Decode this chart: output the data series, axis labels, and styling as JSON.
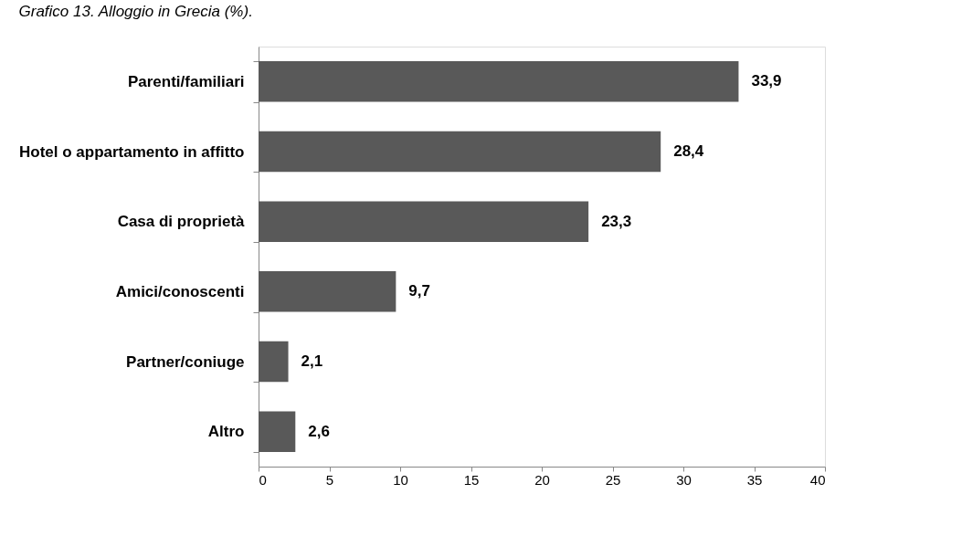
{
  "chart_data": {
    "type": "bar",
    "orientation": "horizontal",
    "title": "Grafico 13. Alloggio in Grecia (%).",
    "categories": [
      "Parenti/familiari",
      "Hotel o appartamento in affitto",
      "Casa di proprietà",
      "Amici/conoscenti",
      "Partner/coniuge",
      "Altro"
    ],
    "values": [
      33.9,
      28.4,
      23.3,
      9.7,
      2.1,
      2.6
    ],
    "value_labels": [
      "33,9",
      "28,4",
      "23,3",
      "9,7",
      "2,1",
      "2,6"
    ],
    "color": "#595959",
    "xlim": [
      0,
      40
    ],
    "xticks": [
      0,
      5,
      10,
      15,
      20,
      25,
      30,
      35,
      40
    ],
    "grid": false
  }
}
